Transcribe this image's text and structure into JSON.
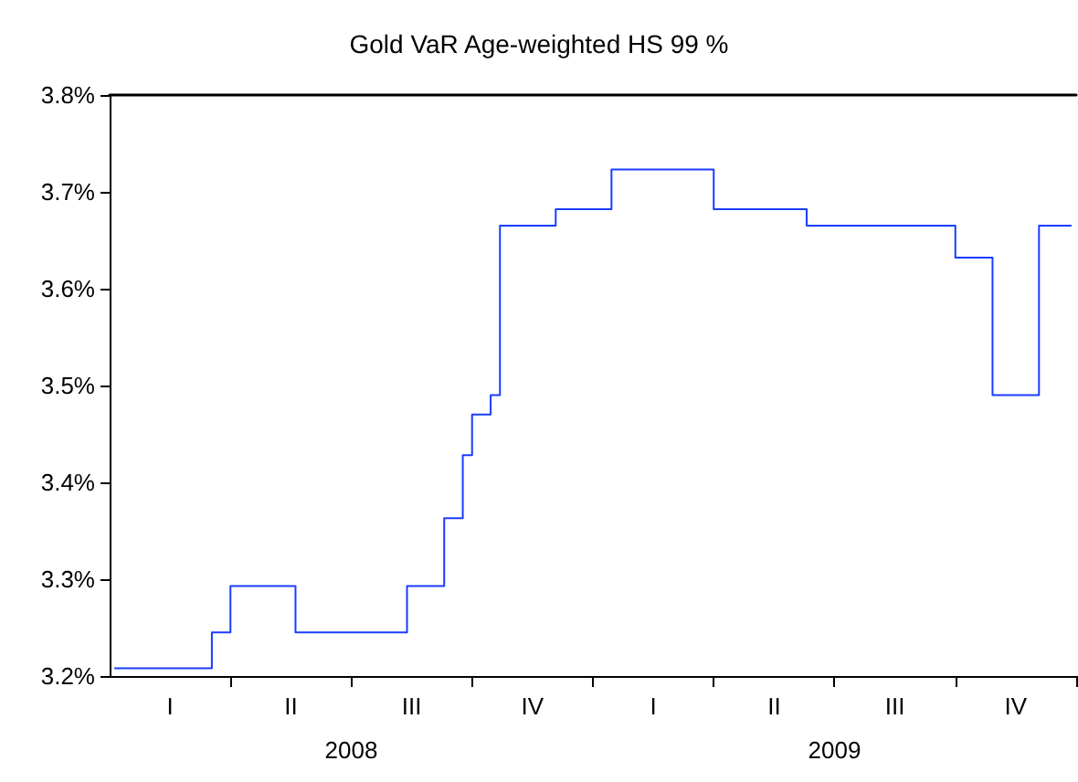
{
  "chart_data": {
    "type": "step",
    "title": "Gold VaR Age-weighted HS 99 %",
    "categories": [
      null,
      null,
      null,
      null,
      null,
      null,
      "I",
      null,
      null,
      null,
      null,
      null,
      null,
      null,
      null,
      null,
      null,
      null,
      null,
      "II",
      null,
      null,
      null,
      null,
      null,
      null,
      null,
      null,
      null,
      null,
      null,
      null,
      "III",
      null,
      null,
      null,
      null,
      null,
      null,
      null,
      null,
      null,
      null,
      null,
      null,
      "IV",
      null,
      null,
      null,
      null,
      null,
      null,
      null,
      null,
      null,
      null,
      null,
      null,
      "I",
      null,
      null,
      null,
      null,
      null,
      null,
      null,
      null,
      null,
      null,
      null,
      null,
      "II",
      null,
      null,
      null,
      null,
      null,
      null,
      null,
      null,
      null,
      null,
      null,
      null,
      "III",
      null,
      null,
      null,
      null,
      null,
      null,
      null,
      null,
      null,
      null,
      null,
      null,
      "IV",
      null,
      null,
      null,
      null,
      null,
      null
    ],
    "series": [
      {
        "color": "#1a3cff",
        "values": [
          3.208,
          3.208,
          3.208,
          3.208,
          3.208,
          3.208,
          3.208,
          3.208,
          3.208,
          3.208,
          3.208,
          3.245,
          3.245,
          3.293,
          3.293,
          3.293,
          3.293,
          3.293,
          3.293,
          3.293,
          3.245,
          3.245,
          3.245,
          3.245,
          3.245,
          3.245,
          3.245,
          3.245,
          3.245,
          3.245,
          3.245,
          3.245,
          3.293,
          3.293,
          3.293,
          3.293,
          3.363,
          3.363,
          3.428,
          3.47,
          3.47,
          3.49,
          3.665,
          3.665,
          3.665,
          3.665,
          3.665,
          3.665,
          3.682,
          3.682,
          3.682,
          3.682,
          3.682,
          3.682,
          3.723,
          3.723,
          3.723,
          3.723,
          3.723,
          3.723,
          3.723,
          3.723,
          3.723,
          3.723,
          3.723,
          3.682,
          3.682,
          3.682,
          3.682,
          3.682,
          3.682,
          3.682,
          3.682,
          3.682,
          3.682,
          3.665,
          3.665,
          3.665,
          3.665,
          3.665,
          3.665,
          3.665,
          3.665,
          3.665,
          3.665,
          3.665,
          3.665,
          3.665,
          3.665,
          3.665,
          3.665,
          3.632,
          3.632,
          3.632,
          3.632,
          3.49,
          3.49,
          3.49,
          3.49,
          3.49,
          3.665,
          3.665,
          3.665,
          3.665
        ]
      }
    ],
    "ylim": [
      3.2,
      3.8
    ],
    "yticks": [
      {
        "value": 3.2,
        "label": "3.2%"
      },
      {
        "value": 3.3,
        "label": "3.3%"
      },
      {
        "value": 3.4,
        "label": "3.4%"
      },
      {
        "value": 3.5,
        "label": "3.5%"
      },
      {
        "value": 3.6,
        "label": "3.6%"
      },
      {
        "value": 3.7,
        "label": "3.7%"
      },
      {
        "value": 3.8,
        "label": "3.8%"
      }
    ],
    "annotations": [
      "2008",
      "2009"
    ],
    "grid": false
  }
}
